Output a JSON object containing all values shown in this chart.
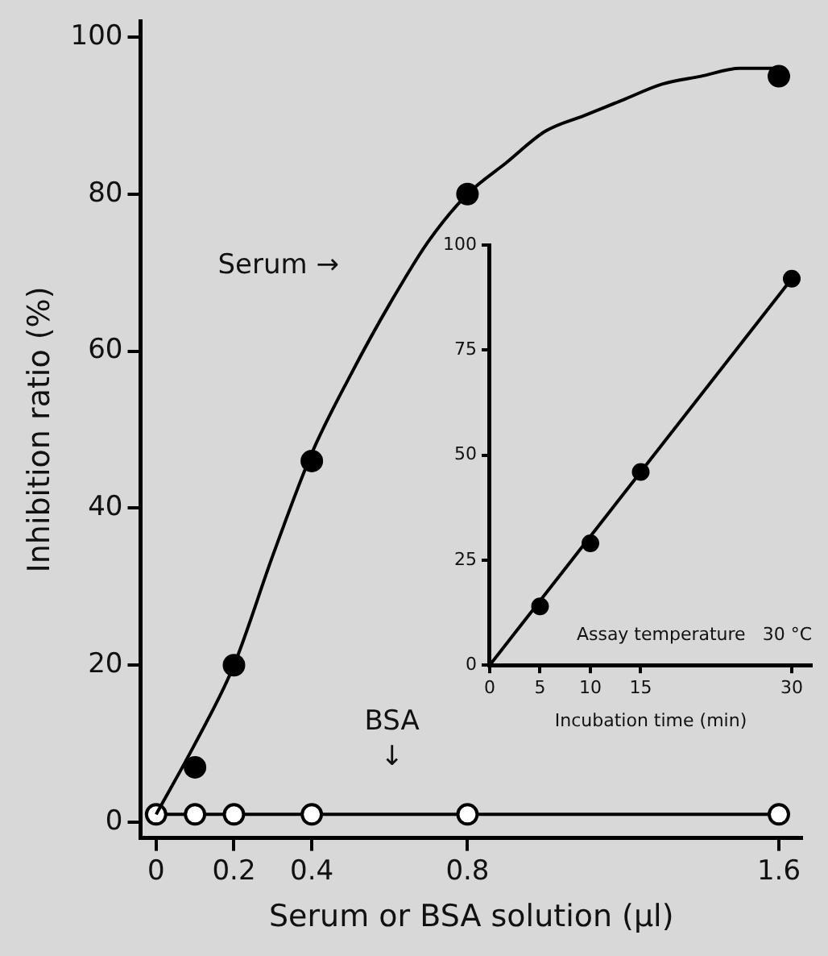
{
  "chart_data": [
    {
      "type": "line",
      "xlabel": "Serum or BSA solution (μl)",
      "ylabel": "Inhibition ratio (%)",
      "xlim": [
        -0.04,
        1.66
      ],
      "ylim": [
        -2,
        102
      ],
      "xticks": [
        0,
        0.2,
        0.4,
        0.8,
        1.6
      ],
      "yticks": [
        0,
        20,
        40,
        60,
        80,
        100
      ],
      "grid": false,
      "legend": false,
      "series": [
        {
          "type": "scatter",
          "color": "#000000",
          "marker": "circle",
          "x": [
            0.1,
            0.2,
            0.4,
            0.8,
            1.6
          ],
          "values": [
            7,
            20,
            46,
            80,
            95
          ]
        },
        {
          "type": "line",
          "color": "#000000",
          "marker": "none",
          "x": [
            0,
            0.1,
            0.2,
            0.3,
            0.4,
            0.5,
            0.6,
            0.7,
            0.8,
            0.9,
            1.0,
            1.1,
            1.2,
            1.3,
            1.4,
            1.5,
            1.6
          ],
          "values": [
            1,
            10,
            20,
            34,
            47,
            57,
            66,
            74,
            80,
            84,
            88,
            90,
            92,
            94,
            95,
            96,
            96
          ]
        },
        {
          "type": "line",
          "color": "#000000",
          "marker": "circle",
          "x": [
            0,
            0.1,
            0.2,
            0.4,
            0.8,
            1.6
          ],
          "values": [
            1,
            1,
            1,
            1,
            1,
            1
          ]
        }
      ],
      "annotations": [
        "Serum →",
        "BSA\n↓"
      ]
    },
    {
      "type": "line",
      "xlabel": "Incubation time (min)",
      "xlim": [
        0,
        32
      ],
      "ylim": [
        0,
        100
      ],
      "xticks": [
        0,
        5,
        10,
        15,
        30
      ],
      "yticks": [
        0,
        25,
        50,
        75,
        100
      ],
      "grid": false,
      "legend": false,
      "series": [
        {
          "type": "line",
          "color": "#000000",
          "marker": "none",
          "x": [
            0,
            30
          ],
          "values": [
            0,
            92
          ]
        },
        {
          "type": "scatter",
          "color": "#000000",
          "marker": "circle",
          "x": [
            5,
            10,
            15,
            30
          ],
          "values": [
            14,
            29,
            46,
            92
          ]
        }
      ],
      "annotations": [
        "Assay temperature   30 °C"
      ]
    }
  ]
}
